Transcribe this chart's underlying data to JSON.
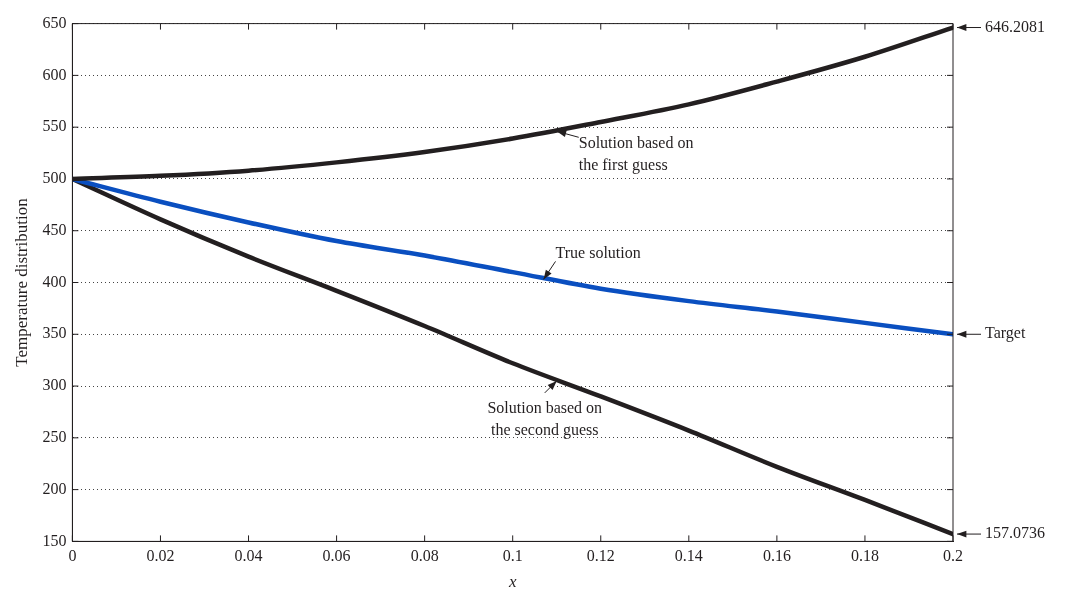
{
  "chart_data": {
    "type": "line",
    "ylabel": "Temperature distribution",
    "xlabel": "x",
    "x": [
      0,
      0.02,
      0.04,
      0.06,
      0.08,
      0.1,
      0.12,
      0.14,
      0.16,
      0.18,
      0.2
    ],
    "series": [
      {
        "color": "#231f20",
        "values": [
          500,
          503,
          508,
          516,
          526,
          539,
          555,
          572,
          594,
          618,
          646.2081
        ]
      },
      {
        "color": "#0a4fc0",
        "values": [
          500,
          478,
          458,
          440,
          426,
          410,
          394,
          382,
          372,
          361,
          350
        ]
      },
      {
        "color": "#231f20",
        "values": [
          500,
          461,
          425,
          392,
          358,
          322,
          290,
          257,
          222,
          190,
          157.0736
        ]
      }
    ],
    "xlim": [
      0,
      0.2
    ],
    "xticks": [
      0,
      0.02,
      0.04,
      0.06,
      0.08,
      0.1,
      0.12,
      0.14,
      0.16,
      0.18,
      0.2
    ],
    "ylim": [
      150,
      650
    ],
    "yticks": [
      150,
      200,
      250,
      300,
      350,
      400,
      450,
      500,
      550,
      600,
      650
    ],
    "grid": "y",
    "legend": false,
    "marker": "none",
    "line_style": "solid",
    "annotations": [
      {
        "text": "Solution based on\nthe first guess",
        "x": 0.11,
        "y": 546
      },
      {
        "text": "True solution",
        "x": 0.107,
        "y": 403
      },
      {
        "text": "Solution based on\nthe second guess",
        "x": 0.11,
        "y": 305
      },
      {
        "text": "646.2081",
        "x": 0.2,
        "y": 646.2081
      },
      {
        "text": "Target",
        "x": 0.2,
        "y": 350
      },
      {
        "text": "157.0736",
        "x": 0.2,
        "y": 157.0736
      }
    ]
  }
}
